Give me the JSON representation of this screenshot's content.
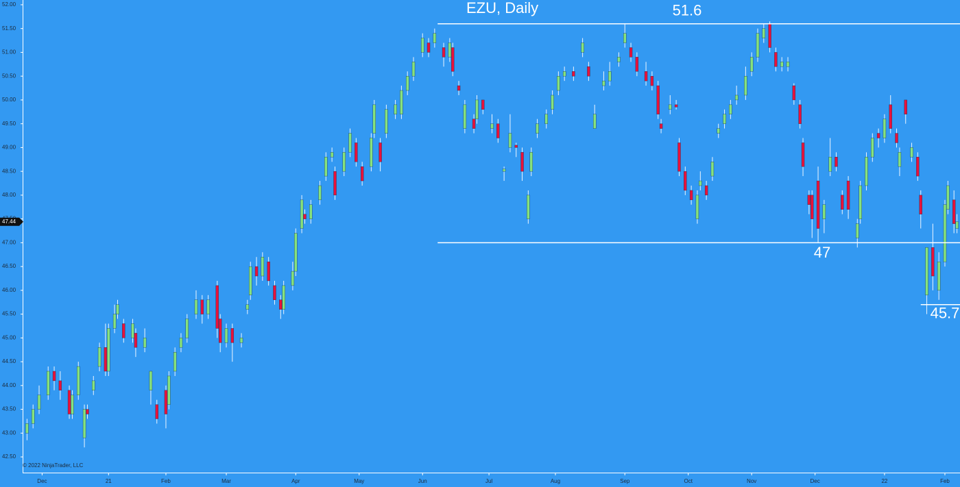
{
  "chart_data": {
    "type": "candlestick",
    "title": "EZU, Daily",
    "copyright": "© 2022 NinjaTrader, LLC",
    "up_color": "#86e27e",
    "down_color": "#e8123c",
    "wick_color": "#eef6ff",
    "level_color": "#ffffff",
    "xlim": [
      0,
      310
    ],
    "ylim": [
      42.17,
      52.1
    ],
    "xticks": [
      {
        "value": 6,
        "label": "Dec"
      },
      {
        "value": 28,
        "label": "21"
      },
      {
        "value": 47,
        "label": "Feb"
      },
      {
        "value": 67,
        "label": "Mar"
      },
      {
        "value": 90,
        "label": "Apr"
      },
      {
        "value": 111,
        "label": "May"
      },
      {
        "value": 132,
        "label": "Jun"
      },
      {
        "value": 154,
        "label": "Jul"
      },
      {
        "value": 176,
        "label": "Aug"
      },
      {
        "value": 199,
        "label": "Sep"
      },
      {
        "value": 220,
        "label": "Oct"
      },
      {
        "value": 241,
        "label": "Nov"
      },
      {
        "value": 262,
        "label": "Dec"
      },
      {
        "value": 285,
        "label": "22"
      },
      {
        "value": 305,
        "label": "Feb"
      }
    ],
    "yticks": [
      {
        "value": 42.5,
        "label": "42.50"
      },
      {
        "value": 43,
        "label": "43.00"
      },
      {
        "value": 43.5,
        "label": "43.50"
      },
      {
        "value": 44,
        "label": "44.00"
      },
      {
        "value": 44.5,
        "label": "44.50"
      },
      {
        "value": 45,
        "label": "45.00"
      },
      {
        "value": 45.5,
        "label": "45.50"
      },
      {
        "value": 46,
        "label": "46.00"
      },
      {
        "value": 46.5,
        "label": "46.50"
      },
      {
        "value": 47,
        "label": "47.00"
      },
      {
        "value": 47.5,
        "label": "47.50"
      },
      {
        "value": 48,
        "label": "48.00"
      },
      {
        "value": 48.5,
        "label": "48.50"
      },
      {
        "value": 49,
        "label": "49.00"
      },
      {
        "value": 49.5,
        "label": "49.50"
      },
      {
        "value": 50,
        "label": "50.00"
      },
      {
        "value": 50.5,
        "label": "50.50"
      },
      {
        "value": 51,
        "label": "51.00"
      },
      {
        "value": 51.5,
        "label": "51.50"
      },
      {
        "value": 52,
        "label": "52.00"
      }
    ],
    "last_price": 47.44,
    "levels": [
      {
        "value": 51.6,
        "x_start": 137
      },
      {
        "value": 47,
        "x_start": 137
      },
      {
        "value": 45.7,
        "x_start": 297
      }
    ],
    "x": [
      1,
      3,
      5,
      8,
      10,
      12,
      15,
      16,
      18,
      20,
      21,
      23,
      25,
      27,
      28,
      30,
      31,
      33,
      36,
      37,
      40,
      42,
      44,
      47,
      48,
      50,
      52,
      54,
      57,
      59,
      61,
      64,
      65,
      67,
      69,
      72,
      74,
      75,
      77,
      79,
      81,
      83,
      85,
      86,
      89,
      90,
      92,
      93,
      95,
      98,
      100,
      102,
      103,
      106,
      108,
      110,
      112,
      115,
      116,
      118,
      120,
      123,
      125,
      127,
      129,
      132,
      134,
      136,
      139,
      141,
      142,
      144,
      146,
      149,
      150,
      152,
      155,
      157,
      159,
      161,
      163,
      165,
      167,
      168,
      170,
      173,
      175,
      177,
      179,
      182,
      185,
      187,
      189,
      192,
      194,
      197,
      199,
      201,
      203,
      206,
      208,
      210,
      211,
      214,
      216,
      217,
      219,
      221,
      223,
      224,
      226,
      228,
      230,
      232,
      234,
      236,
      239,
      241,
      243,
      245,
      247,
      249,
      251,
      253,
      255,
      257,
      258,
      260,
      261,
      263,
      265,
      267,
      269,
      271,
      273,
      276,
      277,
      279,
      281,
      283,
      285,
      287,
      289,
      290,
      292,
      294,
      296,
      297,
      299,
      301,
      303,
      305,
      306,
      308,
      309
    ],
    "open": [
      43.0,
      43.2,
      43.5,
      43.8,
      44.3,
      44.1,
      43.9,
      43.4,
      43.8,
      42.9,
      43.5,
      43.9,
      44.4,
      44.8,
      44.3,
      45.2,
      45.5,
      45.3,
      45.0,
      45.1,
      44.8,
      43.9,
      43.6,
      43.9,
      43.6,
      44.3,
      44.8,
      45.0,
      45.5,
      45.8,
      45.5,
      46.1,
      45.4,
      44.9,
      45.2,
      44.9,
      45.6,
      45.9,
      46.5,
      46.3,
      46.6,
      46.1,
      45.8,
      45.6,
      46.1,
      46.4,
      47.3,
      47.6,
      47.5,
      47.9,
      48.4,
      48.8,
      48.5,
      48.5,
      48.9,
      49.1,
      48.6,
      48.6,
      49.3,
      49.1,
      49.3,
      49.7,
      49.7,
      50.2,
      50.5,
      51.0,
      51.2,
      51.2,
      51.1,
      50.9,
      51.1,
      50.3,
      49.4,
      49.6,
      49.6,
      50.0,
      49.4,
      49.5,
      48.5,
      49.0,
      49.05,
      48.9,
      47.5,
      48.5,
      49.3,
      49.5,
      49.8,
      50.2,
      50.5,
      50.6,
      51.0,
      50.7,
      49.4,
      50.3,
      50.4,
      50.8,
      51.2,
      51.1,
      50.9,
      50.6,
      50.5,
      50.3,
      49.5,
      49.8,
      49.9,
      49.1,
      48.5,
      48.1,
      47.5,
      48.2,
      48.2,
      48.4,
      49.3,
      49.5,
      49.7,
      50.0,
      50.1,
      50.6,
      50.9,
      51.3,
      51.6,
      51.0,
      50.7,
      50.7,
      50.3,
      49.9,
      49.1,
      48.0,
      48.0,
      48.3,
      47.5,
      48.5,
      48.8,
      48.0,
      48.3,
      47.1,
      47.5,
      48.2,
      48.8,
      49.3,
      49.2,
      49.9,
      49.3,
      48.6,
      50.0,
      48.8,
      48.8,
      48.0,
      45.9,
      46.9,
      46.0,
      46.6,
      47.7,
      47.9,
      47.3
    ],
    "high": [
      43.3,
      43.6,
      44.0,
      44.4,
      44.4,
      44.3,
      44.0,
      43.9,
      44.5,
      43.6,
      43.6,
      44.2,
      44.9,
      45.3,
      45.3,
      45.7,
      45.8,
      45.4,
      45.4,
      45.2,
      45.2,
      44.3,
      43.7,
      44.0,
      44.3,
      44.8,
      45.1,
      45.5,
      46.0,
      45.9,
      45.9,
      46.2,
      45.5,
      45.3,
      45.3,
      45.1,
      45.8,
      46.6,
      46.7,
      46.8,
      46.7,
      46.2,
      45.9,
      46.2,
      46.6,
      47.3,
      48.0,
      47.7,
      47.9,
      48.3,
      48.9,
      49.0,
      48.6,
      49.0,
      49.4,
      49.2,
      48.7,
      49.3,
      50.0,
      49.2,
      49.9,
      50.0,
      50.3,
      50.6,
      50.9,
      51.4,
      51.3,
      51.5,
      51.2,
      51.3,
      51.2,
      50.4,
      50.0,
      49.7,
      50.1,
      50.0,
      49.7,
      49.6,
      48.6,
      49.7,
      49.1,
      49.0,
      48.1,
      49.0,
      49.6,
      49.8,
      50.2,
      50.6,
      50.7,
      50.7,
      51.3,
      50.8,
      49.9,
      50.6,
      50.8,
      51.0,
      51.6,
      51.2,
      51.0,
      50.8,
      50.6,
      50.4,
      49.6,
      50.1,
      50.0,
      49.2,
      48.6,
      48.2,
      48.1,
      48.5,
      48.3,
      48.8,
      49.5,
      49.8,
      50.0,
      50.3,
      50.7,
      51.0,
      51.5,
      51.6,
      51.65,
      51.1,
      50.9,
      50.9,
      50.35,
      50.0,
      49.2,
      48.1,
      48.1,
      48.6,
      47.9,
      49.2,
      48.9,
      48.1,
      48.4,
      47.5,
      48.3,
      48.9,
      49.3,
      49.4,
      49.7,
      50.1,
      49.4,
      49.0,
      50.0,
      49.1,
      48.9,
      48.1,
      46.9,
      47.4,
      46.8,
      47.9,
      48.3,
      48.1,
      47.6
    ],
    "low": [
      42.85,
      43.1,
      43.4,
      43.7,
      43.9,
      43.7,
      43.3,
      43.3,
      43.7,
      42.7,
      43.3,
      43.8,
      44.3,
      44.2,
      44.2,
      45.1,
      45.4,
      44.9,
      44.9,
      44.6,
      44.7,
      43.6,
      43.2,
      43.1,
      43.5,
      44.2,
      44.7,
      44.9,
      45.4,
      45.3,
      45.4,
      45.0,
      44.7,
      44.8,
      44.5,
      44.8,
      45.5,
      45.8,
      46.1,
      46.2,
      46.1,
      45.7,
      45.4,
      45.5,
      46.0,
      46.3,
      47.2,
      47.4,
      47.4,
      47.8,
      48.3,
      48.7,
      47.9,
      48.4,
      48.8,
      48.6,
      48.2,
      48.5,
      49.2,
      48.5,
      49.2,
      49.6,
      49.6,
      50.1,
      50.4,
      50.9,
      50.9,
      51.1,
      50.7,
      50.8,
      50.5,
      50.1,
      49.3,
      49.3,
      49.5,
      49.7,
      49.3,
      49.1,
      48.3,
      48.9,
      48.8,
      48.3,
      47.4,
      48.4,
      49.2,
      49.4,
      49.7,
      50.1,
      50.4,
      50.4,
      50.9,
      50.4,
      49.4,
      50.2,
      50.3,
      50.7,
      51.1,
      50.8,
      50.5,
      50.3,
      50.2,
      49.6,
      49.3,
      49.7,
      49.8,
      48.4,
      48.0,
      47.8,
      47.4,
      48.1,
      47.9,
      48.3,
      49.2,
      49.4,
      49.6,
      49.9,
      50.0,
      50.5,
      50.8,
      51.2,
      51.0,
      50.6,
      50.6,
      50.6,
      49.9,
      49.4,
      48.4,
      47.6,
      47.1,
      47.0,
      47.2,
      48.4,
      48.5,
      47.6,
      47.5,
      46.9,
      47.4,
      48.1,
      48.7,
      49.0,
      49.1,
      49.3,
      49.0,
      48.4,
      49.5,
      48.7,
      48.3,
      47.3,
      45.5,
      46.0,
      45.8,
      46.5,
      47.6,
      47.2,
      47.2
    ],
    "close": [
      43.2,
      43.5,
      43.8,
      44.3,
      44.1,
      43.9,
      43.4,
      43.8,
      44.4,
      43.5,
      43.4,
      44.1,
      44.8,
      44.3,
      45.2,
      45.5,
      45.7,
      45.0,
      45.3,
      44.8,
      45.0,
      44.3,
      43.3,
      43.4,
      44.2,
      44.7,
      45.0,
      45.4,
      45.8,
      45.5,
      45.8,
      45.2,
      44.9,
      45.2,
      44.9,
      45.0,
      45.7,
      46.5,
      46.3,
      46.7,
      46.2,
      45.8,
      45.6,
      46.1,
      46.4,
      47.2,
      47.9,
      47.5,
      47.8,
      48.2,
      48.8,
      48.9,
      48.0,
      48.9,
      49.3,
      48.7,
      48.3,
      49.2,
      49.9,
      48.7,
      49.8,
      49.9,
      50.2,
      50.5,
      50.8,
      51.3,
      51.0,
      51.4,
      50.9,
      51.2,
      50.6,
      50.2,
      49.9,
      49.4,
      50.0,
      49.8,
      49.5,
      49.2,
      48.55,
      49.3,
      49.0,
      48.5,
      48.0,
      48.9,
      49.5,
      49.7,
      50.1,
      50.5,
      50.6,
      50.5,
      51.2,
      50.5,
      49.7,
      50.4,
      50.6,
      50.9,
      51.4,
      50.9,
      50.6,
      50.4,
      50.3,
      49.7,
      49.4,
      49.9,
      49.85,
      48.5,
      48.1,
      47.9,
      48.0,
      48.3,
      48.0,
      48.7,
      49.4,
      49.7,
      49.9,
      50.1,
      50.5,
      50.9,
      51.4,
      51.5,
      51.1,
      50.7,
      50.8,
      50.8,
      50.0,
      49.5,
      48.6,
      47.8,
      47.5,
      47.3,
      47.8,
      48.8,
      48.6,
      47.7,
      47.7,
      47.4,
      48.2,
      48.8,
      49.2,
      49.2,
      49.6,
      49.4,
      49.1,
      48.9,
      49.7,
      49.0,
      48.4,
      47.6,
      46.9,
      46.3,
      46.6,
      47.8,
      48.2,
      47.4,
      47.44
    ]
  }
}
